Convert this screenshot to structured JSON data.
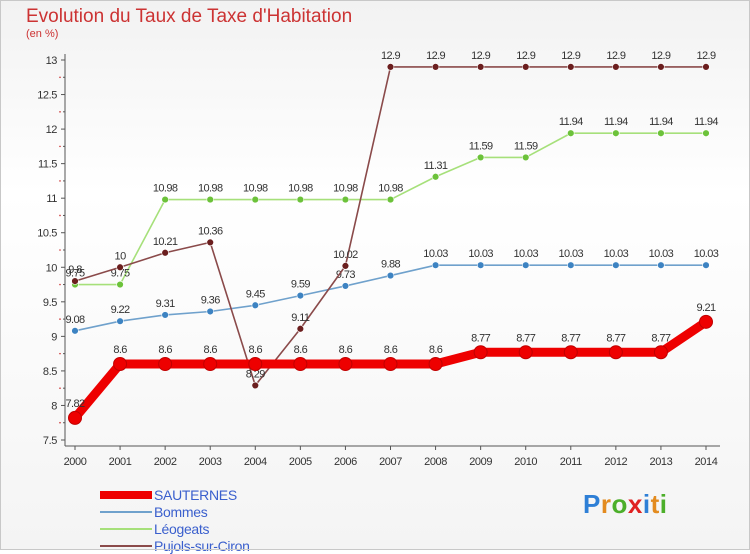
{
  "title": "Evolution du Taux de Taxe d'Habitation",
  "subtitle": "(en %)",
  "logo": [
    "P",
    "r",
    "o",
    "x",
    "i",
    "t",
    "i"
  ],
  "logo_colors": [
    "#2e7fd6",
    "#e38b1f",
    "#4caf2a",
    "#e02020",
    "#2e7fd6",
    "#e38b1f",
    "#4caf2a"
  ],
  "chart_data": {
    "type": "line",
    "x": [
      "2000",
      "2001",
      "2002",
      "2003",
      "2004",
      "2005",
      "2006",
      "2007",
      "2008",
      "2009",
      "2010",
      "2011",
      "2012",
      "2013",
      "2014"
    ],
    "yticks": [
      "7.5",
      "8",
      "8.5",
      "9",
      "9.5",
      "10",
      "10.5",
      "11",
      "11.5",
      "12",
      "12.5",
      "13"
    ],
    "ylim": [
      7.5,
      13
    ],
    "grid": false,
    "legend_position": "bottom-left",
    "series": [
      {
        "name": "SAUTERNES",
        "color": "#ee0000",
        "point_color": "#ee0000",
        "values": [
          7.82,
          8.6,
          8.6,
          8.6,
          8.6,
          8.6,
          8.6,
          8.6,
          8.6,
          8.77,
          8.77,
          8.77,
          8.77,
          8.77,
          9.21
        ],
        "labels": [
          "7.82",
          "8.6",
          "8.6",
          "8.6",
          "8.6",
          "8.6",
          "8.6",
          "8.6",
          "8.6",
          "8.77",
          "8.77",
          "8.77",
          "8.77",
          "8.77",
          "9.21"
        ]
      },
      {
        "name": "Bommes",
        "color": "#6fa1cc",
        "point_color": "#3d83c2",
        "values": [
          9.08,
          9.22,
          9.31,
          9.36,
          9.45,
          9.59,
          9.73,
          9.88,
          10.03,
          10.03,
          10.03,
          10.03,
          10.03,
          10.03,
          10.03
        ],
        "labels": [
          "9.08",
          "9.22",
          "9.31",
          "9.36",
          "9.45",
          "9.59",
          "9.73",
          "9.88",
          "10.03",
          "10.03",
          "10.03",
          "10.03",
          "10.03",
          "10.03",
          "10.03"
        ]
      },
      {
        "name": "Léogeats",
        "color": "#a6e07a",
        "point_color": "#6cc23a",
        "values": [
          9.75,
          9.75,
          10.98,
          10.98,
          10.98,
          10.98,
          10.98,
          10.98,
          11.31,
          11.59,
          11.59,
          11.94,
          11.94,
          11.94,
          11.94
        ],
        "labels": [
          "9.75",
          "9.75",
          "10.98",
          "10.98",
          "10.98",
          "10.98",
          "10.98",
          "10.98",
          "11.31",
          "11.59",
          "11.59",
          "11.94",
          "11.94",
          "11.94",
          "11.94"
        ]
      },
      {
        "name": "Pujols-sur-Ciron",
        "color": "#8a4a4a",
        "point_color": "#6b1e1e",
        "values": [
          9.8,
          10,
          10.21,
          10.36,
          8.29,
          9.11,
          10.02,
          12.9,
          12.9,
          12.9,
          12.9,
          12.9,
          12.9,
          12.9,
          12.9
        ],
        "labels": [
          "9.8",
          "10",
          "10.21",
          "10.36",
          "8.29",
          "9.11",
          "10.02",
          "12.9",
          "12.9",
          "12.9",
          "12.9",
          "12.9",
          "12.9",
          "12.9",
          "12.9"
        ]
      }
    ]
  }
}
